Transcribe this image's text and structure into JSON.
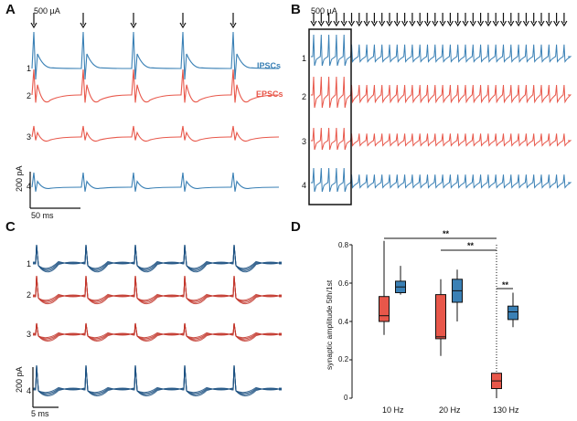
{
  "colors": {
    "blue": "#3a80b5",
    "red": "#e8574a",
    "darkblue": "#1a4f80",
    "darkred": "#c2352a",
    "black": "#111111"
  },
  "panels": {
    "A": {
      "letter": "A",
      "stim_label": "500 µA",
      "trace_numbers": [
        "1",
        "2",
        "3",
        "4"
      ],
      "legend_ipsc": "IPSCs",
      "legend_epsc": "EPSCs",
      "scale_y": "200 pA",
      "scale_x": "50 ms"
    },
    "B": {
      "letter": "B",
      "stim_label": "500 µA",
      "trace_numbers": [
        "1",
        "2",
        "3",
        "4"
      ]
    },
    "C": {
      "letter": "C",
      "trace_numbers": [
        "1",
        "2",
        "3",
        "4"
      ],
      "scale_y": "200 pA",
      "scale_x": "5 ms"
    },
    "D": {
      "letter": "D",
      "ylabel": "synaptic amplitude 5th/1st"
    }
  },
  "chart_data": {
    "type": "box",
    "title": "",
    "xlabel": "",
    "ylabel": "synaptic amplitude 5th/1st",
    "ylim": [
      0,
      0.8
    ],
    "yticks": [
      "0",
      "0.2",
      "0.4",
      "0.6",
      "0.8"
    ],
    "categories": [
      "10 Hz",
      "20 Hz",
      "130 Hz"
    ],
    "series": [
      {
        "color": "#e8574a",
        "boxes": [
          {
            "whisker_low": 0.33,
            "q1": 0.4,
            "median": 0.43,
            "q3": 0.53,
            "whisker_high": 0.82
          },
          {
            "whisker_low": 0.22,
            "q1": 0.31,
            "median": 0.32,
            "q3": 0.54,
            "whisker_high": 0.62
          },
          {
            "whisker_low": 0.0,
            "q1": 0.05,
            "median": 0.09,
            "q3": 0.13,
            "whisker_high": 0.8
          }
        ]
      },
      {
        "color": "#3a80b5",
        "boxes": [
          {
            "whisker_low": 0.54,
            "q1": 0.55,
            "median": 0.58,
            "q3": 0.61,
            "whisker_high": 0.69
          },
          {
            "whisker_low": 0.4,
            "q1": 0.5,
            "median": 0.56,
            "q3": 0.62,
            "whisker_high": 0.67
          },
          {
            "whisker_low": 0.37,
            "q1": 0.41,
            "median": 0.45,
            "q3": 0.48,
            "whisker_high": 0.55
          }
        ]
      }
    ],
    "significance": [
      {
        "from": "10 Hz",
        "to": "130 Hz",
        "label": "**"
      },
      {
        "from": "20 Hz",
        "to": "130 Hz",
        "label": "**"
      },
      {
        "from": "130 Hz red",
        "to": "130 Hz blue",
        "label": "**"
      }
    ]
  }
}
